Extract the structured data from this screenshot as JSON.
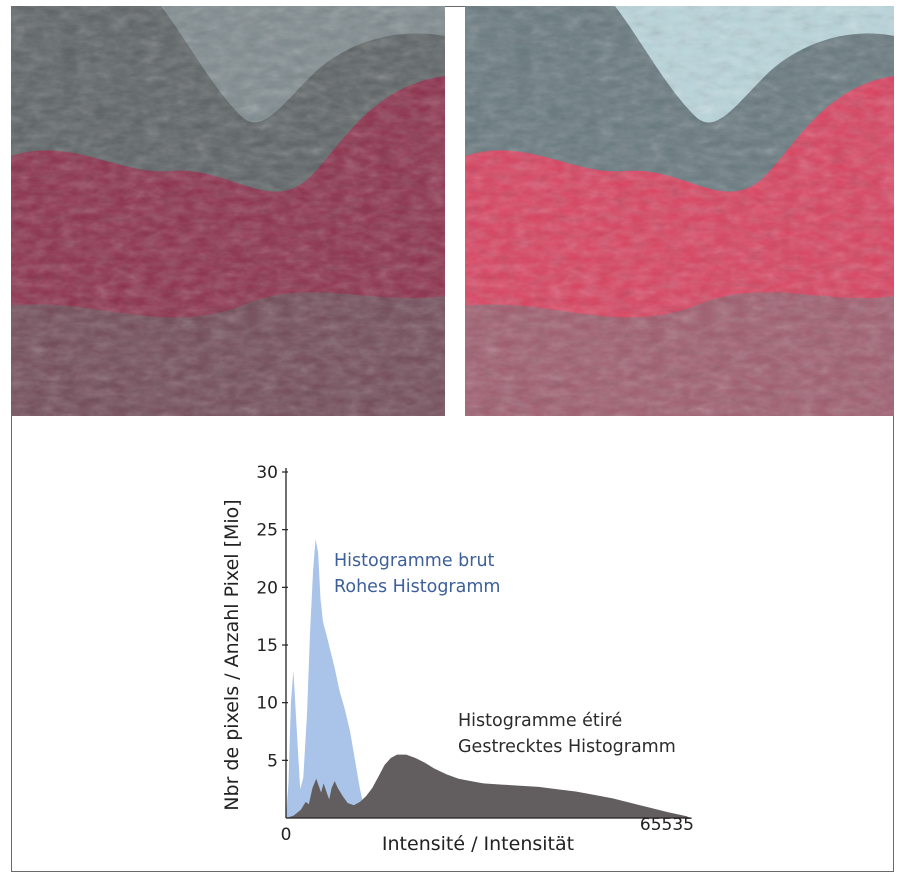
{
  "images": {
    "raw": {
      "name": "Histogramme brut",
      "colors": {
        "base": "#5c6264",
        "veg": "#8c2f4b",
        "light": "#7e8a8e"
      }
    },
    "stretched": {
      "name": "Histogramme étiré",
      "colors": {
        "base": "#66787e",
        "veg": "#d9415f",
        "light": "#b9d6dc"
      }
    }
  },
  "chart_data": {
    "type": "area",
    "xlabel": "Intensité / Intensität",
    "ylabel": "Nbr de pixels / Anzahl Pixel [Mio]",
    "xlim": [
      0,
      65535
    ],
    "ylim": [
      0,
      30
    ],
    "xticks": [
      0,
      65535
    ],
    "xtick_labels": [
      "0",
      "65535"
    ],
    "yticks": [
      5,
      10,
      15,
      20,
      25,
      30
    ],
    "ytick_labels": [
      "5",
      "10",
      "15",
      "20",
      "25",
      "30"
    ],
    "series": [
      {
        "name_lines": [
          "Histogramme brut",
          "Rohes Histogramm"
        ],
        "color": "#a9c4e8",
        "label_color": "#3d5f9a",
        "points": [
          [
            0,
            0.2
          ],
          [
            400,
            3
          ],
          [
            800,
            10
          ],
          [
            1200,
            12.8
          ],
          [
            1700,
            8
          ],
          [
            2300,
            2.5
          ],
          [
            2800,
            3.5
          ],
          [
            3400,
            9
          ],
          [
            3900,
            16
          ],
          [
            4400,
            21.5
          ],
          [
            4800,
            24.2
          ],
          [
            5200,
            23
          ],
          [
            5600,
            19
          ],
          [
            6000,
            17
          ],
          [
            6600,
            15.8
          ],
          [
            7200,
            14.5
          ],
          [
            7900,
            13
          ],
          [
            8700,
            11
          ],
          [
            9500,
            9.5
          ],
          [
            10400,
            7.5
          ],
          [
            11200,
            5
          ],
          [
            12000,
            2.5
          ],
          [
            12800,
            0.6
          ],
          [
            13500,
            0
          ]
        ]
      },
      {
        "name_lines": [
          "Histogramme étiré",
          "Gestrecktes Histogramm"
        ],
        "color": "#625d5e",
        "label_color": "#2b2b2b",
        "points": [
          [
            0,
            0
          ],
          [
            1200,
            0.2
          ],
          [
            2400,
            0.7
          ],
          [
            3200,
            1.4
          ],
          [
            3700,
            1.2
          ],
          [
            4300,
            2.6
          ],
          [
            4900,
            3.4
          ],
          [
            5300,
            2.8
          ],
          [
            5700,
            2.2
          ],
          [
            6100,
            3.0
          ],
          [
            6600,
            2.2
          ],
          [
            7000,
            1.6
          ],
          [
            7400,
            2.6
          ],
          [
            7900,
            3.2
          ],
          [
            8400,
            2.6
          ],
          [
            9200,
            1.9
          ],
          [
            10000,
            1.3
          ],
          [
            11000,
            1.1
          ],
          [
            12000,
            1.4
          ],
          [
            13000,
            1.9
          ],
          [
            14000,
            2.6
          ],
          [
            15000,
            3.6
          ],
          [
            16000,
            4.6
          ],
          [
            17000,
            5.2
          ],
          [
            18000,
            5.5
          ],
          [
            19500,
            5.5
          ],
          [
            21000,
            5.2
          ],
          [
            22500,
            4.8
          ],
          [
            24000,
            4.3
          ],
          [
            26000,
            3.8
          ],
          [
            28000,
            3.4
          ],
          [
            30000,
            3.2
          ],
          [
            32000,
            3.0
          ],
          [
            35000,
            2.9
          ],
          [
            38000,
            2.8
          ],
          [
            41000,
            2.7
          ],
          [
            44000,
            2.5
          ],
          [
            47000,
            2.3
          ],
          [
            50000,
            2.0
          ],
          [
            53000,
            1.7
          ],
          [
            56000,
            1.3
          ],
          [
            59000,
            0.9
          ],
          [
            62000,
            0.5
          ],
          [
            65000,
            0.15
          ],
          [
            65535,
            0
          ]
        ]
      }
    ]
  }
}
